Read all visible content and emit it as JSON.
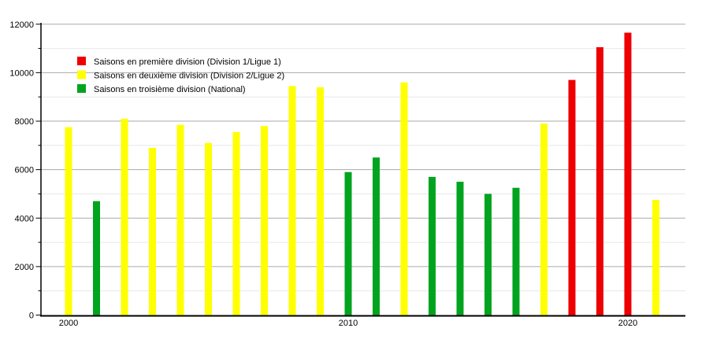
{
  "chart_data": {
    "type": "bar",
    "title": "",
    "xlabel": "",
    "ylabel": "",
    "ylim": [
      0,
      12000
    ],
    "grid": true,
    "y_major_ticks": [
      0,
      2000,
      4000,
      6000,
      8000,
      10000,
      12000
    ],
    "y_minor_ticks": [
      1000,
      3000,
      5000,
      7000,
      9000,
      11000
    ],
    "x_axis_labels": [
      {
        "year": 2000,
        "label": "2000"
      },
      {
        "year": 2010,
        "label": "2010"
      },
      {
        "year": 2020,
        "label": "2020"
      }
    ],
    "legend_position": "upper-left-inside",
    "legend": [
      {
        "key": "D1",
        "label": "Saisons en première division (Division 1/Ligue 1)",
        "color": "#ee0000"
      },
      {
        "key": "D2",
        "label": "Saisons en deuxième division (Division 2/Ligue 2)",
        "color": "#ffff00"
      },
      {
        "key": "D3",
        "label": "Saisons en troisième division (National)",
        "color": "#00a41f"
      }
    ],
    "bars": [
      {
        "year": 2000,
        "division": "D2",
        "value": 7750
      },
      {
        "year": 2001,
        "division": "D3",
        "value": 4700
      },
      {
        "year": 2002,
        "division": "D2",
        "value": 8100
      },
      {
        "year": 2003,
        "division": "D2",
        "value": 6900
      },
      {
        "year": 2004,
        "division": "D2",
        "value": 7850
      },
      {
        "year": 2005,
        "division": "D2",
        "value": 7100
      },
      {
        "year": 2006,
        "division": "D2",
        "value": 7550
      },
      {
        "year": 2007,
        "division": "D2",
        "value": 7800
      },
      {
        "year": 2008,
        "division": "D2",
        "value": 9450
      },
      {
        "year": 2009,
        "division": "D2",
        "value": 9400
      },
      {
        "year": 2010,
        "division": "D3",
        "value": 5900
      },
      {
        "year": 2011,
        "division": "D3",
        "value": 6500
      },
      {
        "year": 2012,
        "division": "D2",
        "value": 9600
      },
      {
        "year": 2013,
        "division": "D3",
        "value": 5700
      },
      {
        "year": 2014,
        "division": "D3",
        "value": 5500
      },
      {
        "year": 2015,
        "division": "D3",
        "value": 5000
      },
      {
        "year": 2016,
        "division": "D3",
        "value": 5250
      },
      {
        "year": 2017,
        "division": "D2",
        "value": 7900
      },
      {
        "year": 2018,
        "division": "D1",
        "value": 9700
      },
      {
        "year": 2019,
        "division": "D1",
        "value": 11050
      },
      {
        "year": 2020,
        "division": "D1",
        "value": 11650
      },
      {
        "year": 2021,
        "division": "D2",
        "value": 4750
      }
    ]
  },
  "colors": {
    "background": "#ffffff",
    "axis": "#000000",
    "grid_major": "#aaaaaa",
    "grid_minor": "#e8e8e8",
    "text": "#000000",
    "division_red": "#ee0000",
    "division_yellow": "#ffff00",
    "division_green": "#00a41f"
  }
}
